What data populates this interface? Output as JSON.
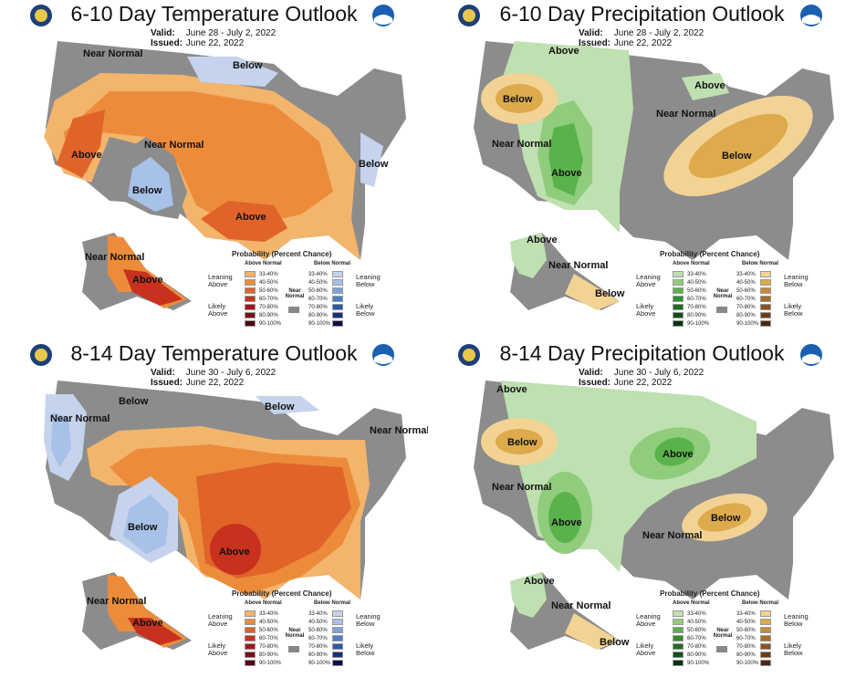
{
  "colors": {
    "near_normal": "#8c8c8c",
    "temp_above": [
      "#f3b46b",
      "#ec8c3b",
      "#e0632a",
      "#c7311e",
      "#a3151e",
      "#7a0e1a",
      "#4d0610"
    ],
    "temp_below": [
      "#c5d3ec",
      "#a8c1e8",
      "#7ba4dc",
      "#4a7fc8",
      "#2a5aa8",
      "#1a2f7a",
      "#0c0e4a"
    ],
    "precip_above": [
      "#bfe0b0",
      "#8fcc7c",
      "#5ab24a",
      "#2f8f2e",
      "#1e6e26",
      "#144f1d",
      "#0b3312"
    ],
    "precip_below": [
      "#f2d394",
      "#ddaa4c",
      "#c88a3b",
      "#a86b2a",
      "#8a5220",
      "#6c3c17",
      "#4a2810"
    ]
  },
  "panels": [
    {
      "title": "6-10 Day Temperature Outlook",
      "valid_label": "Valid:",
      "valid": "June 28 - July 2, 2022",
      "issued_label": "Issued:",
      "issued": "June 22, 2022",
      "regions": [
        "Near Normal",
        "Below",
        "Above",
        "Near Normal",
        "Below",
        "Below",
        "Above",
        "Near Normal",
        "Above"
      ]
    },
    {
      "title": "6-10 Day Precipitation Outlook",
      "valid_label": "Valid:",
      "valid": "June 28 - July 2, 2022",
      "issued_label": "Issued:",
      "issued": "June 22, 2022",
      "regions": [
        "Above",
        "Below",
        "Above",
        "Near Normal",
        "Near Normal",
        "Above",
        "Below",
        "Above",
        "Near Normal",
        "Below"
      ]
    },
    {
      "title": "8-14 Day Temperature Outlook",
      "valid_label": "Valid:",
      "valid": "June 30 - July 6, 2022",
      "issued_label": "Issued:",
      "issued": "June 22, 2022",
      "regions": [
        "Near Normal",
        "Below",
        "Below",
        "Near Normal",
        "Below",
        "Above",
        "Near Normal",
        "Above"
      ]
    },
    {
      "title": "8-14 Day Precipitation Outlook",
      "valid_label": "Valid:",
      "valid": "June 30 - July 6, 2022",
      "issued_label": "Issued:",
      "issued": "June 22, 2022",
      "regions": [
        "Above",
        "Below",
        "Above",
        "Near Normal",
        "Above",
        "Near Normal",
        "Below",
        "Above",
        "Near Normal",
        "Below"
      ]
    }
  ],
  "legend": {
    "title": "Probability (Percent Chance)",
    "above_normal": "Above Normal",
    "below_normal": "Below Normal",
    "near_normal": "Near Normal",
    "ranges": [
      "33-40%",
      "40-50%",
      "50-60%",
      "60-70%",
      "70-80%",
      "80-90%",
      "90-100%"
    ],
    "leaning_above": "Leaning Above",
    "likely_above": "Likely Above",
    "leaning_below": "Leaning Below",
    "likely_below": "Likely Below"
  }
}
